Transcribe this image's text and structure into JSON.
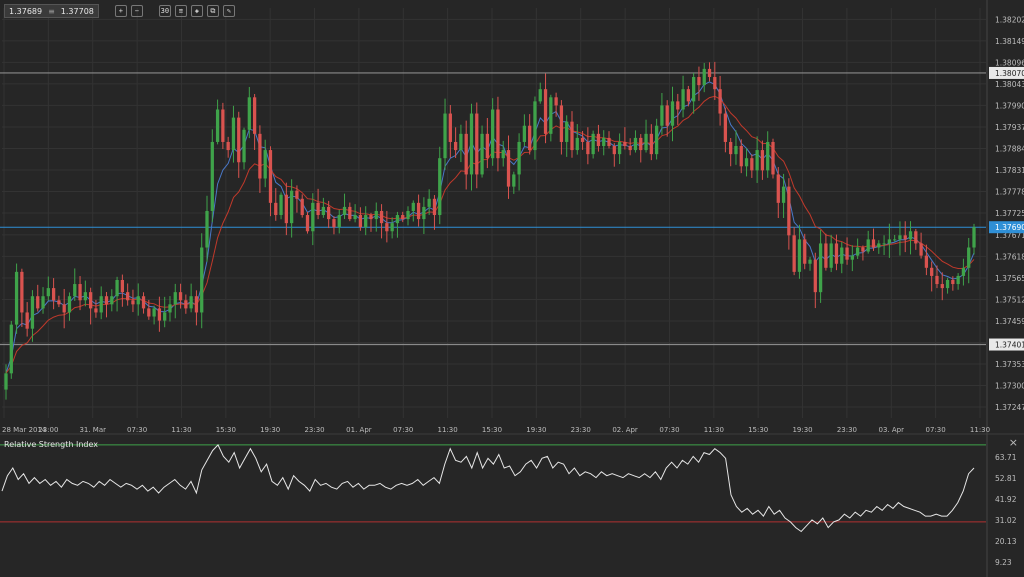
{
  "toolbar": {
    "bid": "1.37689",
    "separator": "≡",
    "ask": "1.37708",
    "buttons": [
      {
        "name": "zoom-in-button",
        "glyph": "+"
      },
      {
        "name": "zoom-out-button",
        "glyph": "−"
      },
      {
        "name": "timeframe-button",
        "glyph": "30"
      },
      {
        "name": "indicators-button",
        "glyph": "≡"
      },
      {
        "name": "objects-button",
        "glyph": "◈"
      },
      {
        "name": "copy-button",
        "glyph": "⧉"
      },
      {
        "name": "draw-button",
        "glyph": "✎"
      }
    ]
  },
  "rsi_panel": {
    "title": "Relative Strength Index",
    "close_glyph": "×"
  },
  "colors": {
    "background": "#262626",
    "grid": "#333333",
    "up": "#3fa34a",
    "down": "#d9534f",
    "ma_fast": "#4a78c8",
    "ma_slow": "#c0392b",
    "level_line": "#8a8a8a",
    "current_line": "#2f8fd6",
    "current_label_bg": "#2f8fd6",
    "level_label_bg": "#e8e8e8",
    "rsi_line": "#e6e6e6",
    "rsi_upper": "#3fa34a",
    "rsi_lower": "#b03030"
  },
  "chart_data": [
    {
      "type": "candlestick",
      "y_ticks": [
        "1.38202",
        "1.38149",
        "1.38096",
        "1.38043",
        "1.37990",
        "1.37937",
        "1.37884",
        "1.37831",
        "1.37778",
        "1.37725",
        "1.37671",
        "1.37618",
        "1.37565",
        "1.37512",
        "1.37459",
        "1.37406",
        "1.37353",
        "1.37300",
        "1.37247"
      ],
      "ylim": [
        1.3722,
        1.3823
      ],
      "x_ticks": [
        "28 Mar 2014",
        "23:00",
        "31. Mar",
        "07:30",
        "11:30",
        "15:30",
        "19:30",
        "23:30",
        "01. Apr",
        "07:30",
        "11:30",
        "15:30",
        "19:30",
        "23:30",
        "02. Apr",
        "07:30",
        "11:30",
        "15:30",
        "19:30",
        "23:30",
        "03. Apr",
        "07:30",
        "11:30"
      ],
      "horizontal_levels": [
        1.3807,
        1.37401
      ],
      "level_labels": [
        "1.38070",
        "1.37401"
      ],
      "current_price": 1.3769,
      "current_label": "1.37690",
      "close": [
        1.3733,
        1.3745,
        1.3758,
        1.3748,
        1.3744,
        1.3752,
        1.3749,
        1.3752,
        1.3754,
        1.3751,
        1.375,
        1.3748,
        1.3752,
        1.3755,
        1.3751,
        1.3753,
        1.3749,
        1.3748,
        1.3752,
        1.375,
        1.3752,
        1.3756,
        1.3753,
        1.3751,
        1.375,
        1.3752,
        1.3749,
        1.3747,
        1.3749,
        1.3746,
        1.3748,
        1.375,
        1.3753,
        1.3751,
        1.3749,
        1.3752,
        1.3748,
        1.3764,
        1.3773,
        1.379,
        1.3798,
        1.379,
        1.3788,
        1.3796,
        1.3785,
        1.3793,
        1.3801,
        1.3792,
        1.3781,
        1.3788,
        1.3775,
        1.3772,
        1.3777,
        1.377,
        1.3778,
        1.3776,
        1.3772,
        1.3768,
        1.3775,
        1.3772,
        1.3774,
        1.3771,
        1.3769,
        1.3772,
        1.3774,
        1.3771,
        1.3772,
        1.3769,
        1.3772,
        1.3771,
        1.3773,
        1.377,
        1.3768,
        1.377,
        1.3772,
        1.3771,
        1.3773,
        1.3775,
        1.3771,
        1.3774,
        1.3776,
        1.3772,
        1.3786,
        1.3797,
        1.379,
        1.3788,
        1.3792,
        1.3782,
        1.3797,
        1.3782,
        1.3792,
        1.3786,
        1.3798,
        1.3786,
        1.3788,
        1.3779,
        1.3782,
        1.379,
        1.3794,
        1.3788,
        1.38,
        1.3803,
        1.3792,
        1.3801,
        1.3799,
        1.379,
        1.3795,
        1.3788,
        1.3791,
        1.379,
        1.3787,
        1.3792,
        1.3789,
        1.3791,
        1.3789,
        1.3787,
        1.379,
        1.3789,
        1.3788,
        1.3791,
        1.3788,
        1.3792,
        1.3787,
        1.3794,
        1.3799,
        1.3794,
        1.38,
        1.3798,
        1.3803,
        1.38,
        1.3806,
        1.3804,
        1.3808,
        1.3806,
        1.3803,
        1.3797,
        1.379,
        1.3787,
        1.3789,
        1.3784,
        1.3786,
        1.3783,
        1.3788,
        1.3783,
        1.379,
        1.3782,
        1.3775,
        1.3779,
        1.3767,
        1.3758,
        1.3766,
        1.376,
        1.3761,
        1.3753,
        1.3765,
        1.3759,
        1.3765,
        1.376,
        1.3764,
        1.3761,
        1.3762,
        1.3764,
        1.3763,
        1.3766,
        1.3764,
        1.3765,
        1.3765,
        1.3766,
        1.3766,
        1.3767,
        1.3766,
        1.3768,
        1.3765,
        1.3762,
        1.3759,
        1.3757,
        1.3755,
        1.3754,
        1.3756,
        1.3755,
        1.3757,
        1.3759,
        1.3764,
        1.3769
      ],
      "rsi": {
        "y_ticks": [
          "63.71",
          "52.81",
          "41.92",
          "31.02",
          "20.13",
          "9.23"
        ],
        "ylim": [
          5,
          72
        ],
        "levels": [
          70,
          30
        ],
        "values": [
          46,
          54,
          58,
          52,
          55,
          50,
          53,
          50,
          52,
          49,
          51,
          48,
          52,
          50,
          49,
          51,
          50,
          48,
          51,
          49,
          52,
          50,
          48,
          50,
          49,
          47,
          49,
          46,
          48,
          45,
          48,
          50,
          52,
          49,
          47,
          51,
          45,
          57,
          62,
          67,
          70,
          64,
          61,
          66,
          58,
          63,
          68,
          63,
          56,
          60,
          51,
          49,
          53,
          47,
          54,
          51,
          49,
          46,
          52,
          49,
          50,
          48,
          47,
          50,
          51,
          48,
          50,
          47,
          49,
          49,
          50,
          48,
          47,
          49,
          50,
          49,
          50,
          52,
          49,
          51,
          53,
          50,
          60,
          68,
          62,
          61,
          64,
          58,
          66,
          58,
          63,
          60,
          65,
          58,
          59,
          54,
          56,
          60,
          62,
          58,
          63,
          64,
          58,
          61,
          60,
          55,
          58,
          54,
          56,
          55,
          53,
          56,
          54,
          55,
          54,
          53,
          55,
          54,
          53,
          55,
          53,
          56,
          52,
          58,
          61,
          58,
          62,
          60,
          64,
          61,
          66,
          65,
          68,
          66,
          63,
          44,
          38,
          35,
          37,
          34,
          36,
          33,
          38,
          34,
          36,
          32,
          30,
          27,
          25,
          28,
          31,
          29,
          32,
          27,
          30,
          31,
          34,
          32,
          35,
          33,
          36,
          35,
          38,
          36,
          39,
          37,
          40,
          38,
          37,
          36,
          35,
          33,
          33,
          34,
          33,
          33,
          36,
          40,
          46,
          55,
          58
        ]
      }
    }
  ]
}
